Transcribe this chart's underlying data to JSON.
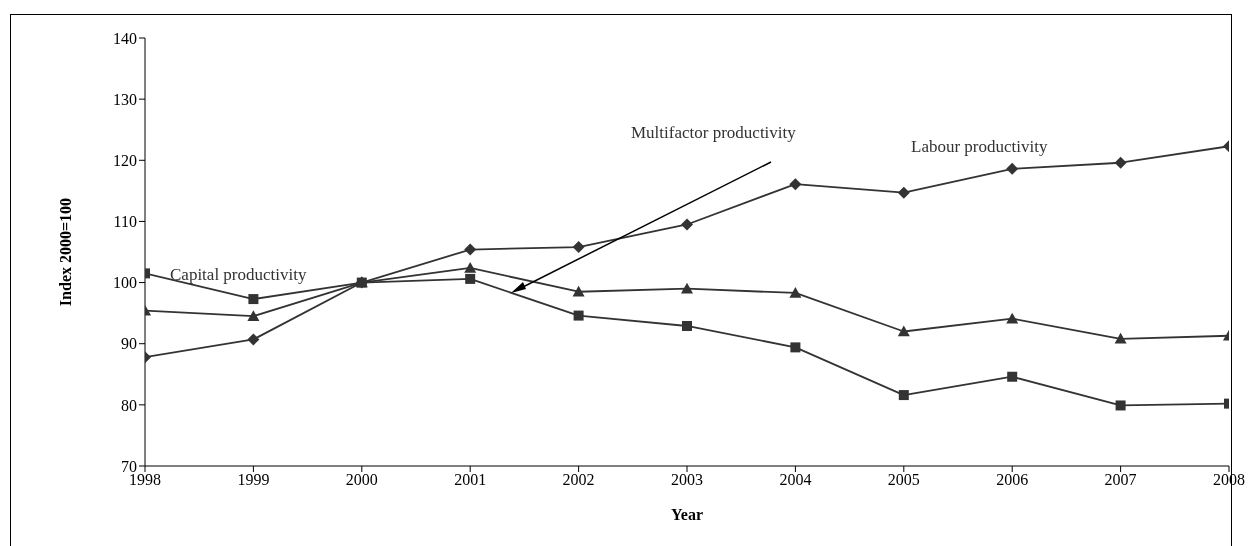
{
  "chart_data": {
    "type": "line",
    "xlabel": "Year",
    "ylabel": "Index 2000=100",
    "x": [
      1998,
      1999,
      2000,
      2001,
      2002,
      2003,
      2004,
      2005,
      2006,
      2007,
      2008
    ],
    "xlim": [
      1998,
      2008
    ],
    "xticks": [
      1998,
      1999,
      2000,
      2001,
      2002,
      2003,
      2004,
      2005,
      2006,
      2007,
      2008
    ],
    "ylim": [
      70,
      140
    ],
    "yticks": [
      70,
      80,
      90,
      100,
      110,
      120,
      130,
      140
    ],
    "grid": false,
    "line_style": "solid",
    "series": [
      {
        "name": "Labour productivity",
        "color": "#333333",
        "marker": "diamond",
        "values": [
          87.8,
          90.7,
          100,
          105.4,
          105.8,
          109.5,
          116.1,
          114.7,
          118.6,
          119.6,
          122.3
        ]
      },
      {
        "name": "Multifactor productivity",
        "color": "#333333",
        "marker": "triangle",
        "values": [
          95.4,
          94.5,
          100,
          102.4,
          98.5,
          99.0,
          98.3,
          92.0,
          94.1,
          90.8,
          91.3
        ]
      },
      {
        "name": "Capital productivity",
        "color": "#333333",
        "marker": "square",
        "values": [
          101.5,
          97.3,
          100,
          100.6,
          94.6,
          92.9,
          89.4,
          81.6,
          84.6,
          79.9,
          80.2
        ]
      }
    ]
  }
}
